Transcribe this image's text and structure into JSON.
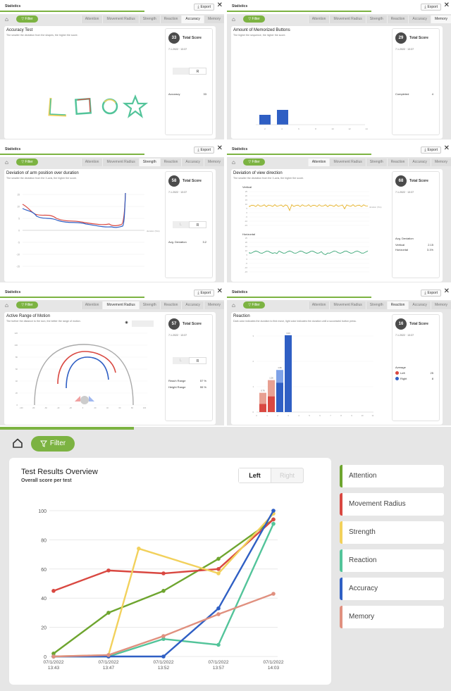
{
  "common": {
    "header_title": "Statistics",
    "export_label": "Export",
    "close_glyph": "✕",
    "filter_label": "Filter",
    "total_score_label": "Total Score",
    "date": "7.1.2022",
    "time": "13:37"
  },
  "tabs": [
    "Attention",
    "Movement Radius",
    "Strength",
    "Reaction",
    "Accuracy",
    "Memory"
  ],
  "panels": [
    {
      "active_tab": "Accuracy",
      "title": "Accuracy Test",
      "subtitle": "The smaller the deviation from the shapes, the higher the score.",
      "score": "33",
      "side_right": "R",
      "metric_label": "Accuracy",
      "metric_value": "33"
    },
    {
      "active_tab": "Memory",
      "title": "Amount of Memorized Buttons",
      "subtitle": "The higher the sequence, the higher the score.",
      "score": "29",
      "metric_label": "Completed",
      "metric_value": "4",
      "bar_ticks": [
        "2",
        "4",
        "6",
        "8",
        "10",
        "12",
        "14"
      ]
    },
    {
      "active_tab": "Strength",
      "title": "Deviation of arm position over duration",
      "subtitle": "The smaller the deviation from the X-axis, the higher the score.",
      "score": "58",
      "side_left": "L",
      "side_right": "R",
      "metric_label": "Avg. Deviation",
      "metric_value": "3.2",
      "y_ticks": [
        "15",
        "10",
        "5",
        "0",
        "-5",
        "-10",
        "-15"
      ],
      "x_note": "duration (%/s)"
    },
    {
      "active_tab": "Attention",
      "title": "Deviation of view direction",
      "subtitle": "The smaller the deviation from the X-axis, the higher the score.",
      "score": "68",
      "vertical_label": "Vertical",
      "horizontal_label": "Horizontal",
      "avg_label": "Avg. Deviation",
      "v_label": "Vertical",
      "v_value": "2.15",
      "h_label": "Horizontal",
      "h_value": "3.1%",
      "line_note": "duration (%/s)",
      "y_ticks": [
        "25",
        "20",
        "15",
        "10",
        "5",
        "0",
        "-5",
        "-10",
        "-15"
      ]
    },
    {
      "active_tab": "Movement Radius",
      "title": "Active Range of Motion",
      "subtitle": "The further the distance to the icon, the better the range of motion.",
      "score": "57",
      "side_left": "L",
      "side_right": "R",
      "reach_left_label": "Reach Range",
      "reach_left_value": "57 %",
      "reach_right_label": "Height Range",
      "reach_right_value": "55 %",
      "y_ticks": [
        "120",
        "100",
        "80",
        "60",
        "40",
        "20",
        "0"
      ],
      "x_ticks": [
        "-100",
        "-80",
        "-60",
        "-40",
        "-20",
        "0",
        "20",
        "40",
        "60",
        "80",
        "100"
      ]
    },
    {
      "active_tab": "Reaction",
      "title": "Reaction",
      "subtitle": "Dark color indicates the duration to first move, light color indicates the duration until a successful button press.",
      "score": "16",
      "avg_label": "Average",
      "left_label": "Left",
      "left_value": "25",
      "right_label": "Right",
      "right_value": "8",
      "bar_labels": [
        "0.76",
        "1.26",
        "1.66",
        "3.03"
      ],
      "y_ticks": [
        "3",
        "2",
        "1",
        "0"
      ],
      "x_ticks": [
        "0",
        "1",
        "2",
        "3",
        "4",
        "5",
        "6",
        "7",
        "8",
        "9",
        "10",
        "11"
      ]
    }
  ],
  "overview": {
    "filter_label": "Filter",
    "title": "Test Results Overview",
    "subtitle": "Overall score per test",
    "toggle_left": "Left",
    "toggle_right": "Right",
    "list": [
      {
        "label": "Attention",
        "color": "#6ea52f"
      },
      {
        "label": "Movement Radius",
        "color": "#d94841"
      },
      {
        "label": "Strength",
        "color": "#f2d15c"
      },
      {
        "label": "Reaction",
        "color": "#53c49a"
      },
      {
        "label": "Accuracy",
        "color": "#2f5fc4"
      },
      {
        "label": "Memory",
        "color": "#e0907f"
      }
    ]
  },
  "chart_data": {
    "type": "line",
    "x": [
      "07/1/2022 13:43",
      "07/1/2022 13:47",
      "07/1/2022 13:52",
      "07/1/2022 13:57",
      "07/1/2022 14:03"
    ],
    "xlabels": [
      [
        "07/1/2022",
        "13:43"
      ],
      [
        "07/1/2022",
        "13:47"
      ],
      [
        "07/1/2022",
        "13:52"
      ],
      [
        "07/1/2022",
        "13:57"
      ],
      [
        "07/1/2022",
        "14:03"
      ]
    ],
    "ylim": [
      0,
      100
    ],
    "yticks": [
      0,
      20,
      40,
      60,
      80,
      100
    ],
    "grid": true,
    "series": [
      {
        "name": "Attention",
        "color": "#6ea52f",
        "points": [
          [
            0,
            2
          ],
          [
            1,
            30
          ],
          [
            2,
            45
          ],
          [
            3,
            67
          ],
          [
            4,
            94
          ]
        ]
      },
      {
        "name": "Movement Radius",
        "color": "#d94841",
        "points": [
          [
            0,
            45
          ],
          [
            1,
            59
          ],
          [
            2,
            57
          ],
          [
            3,
            60
          ],
          [
            4,
            94
          ]
        ]
      },
      {
        "name": "Strength",
        "color": "#f2d15c",
        "points": [
          [
            0,
            0
          ],
          [
            1,
            1
          ],
          [
            1.55,
            74
          ],
          [
            3,
            57
          ],
          [
            4,
            98
          ]
        ]
      },
      {
        "name": "Reaction",
        "color": "#53c49a",
        "points": [
          [
            0,
            0
          ],
          [
            1,
            0
          ],
          [
            2,
            12
          ],
          [
            3,
            8
          ],
          [
            4,
            91
          ]
        ]
      },
      {
        "name": "Accuracy",
        "color": "#2f5fc4",
        "points": [
          [
            0,
            0
          ],
          [
            1,
            0
          ],
          [
            2,
            0
          ],
          [
            3,
            33
          ],
          [
            4,
            100
          ]
        ]
      },
      {
        "name": "Memory",
        "color": "#e0907f",
        "points": [
          [
            0,
            0
          ],
          [
            1,
            1
          ],
          [
            2,
            14
          ],
          [
            3,
            29
          ],
          [
            4,
            43
          ]
        ]
      }
    ]
  }
}
